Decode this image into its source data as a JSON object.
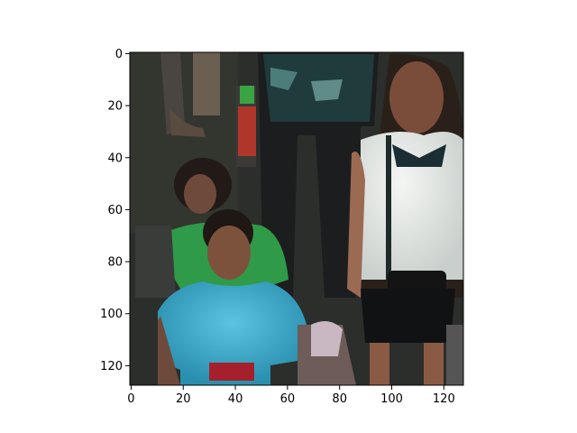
{
  "chart_data": {
    "type": "image",
    "image_size": [
      128,
      128
    ],
    "xlim": [
      -0.5,
      127.5
    ],
    "ylim": [
      127.5,
      -0.5
    ],
    "x_ticks": [
      0,
      20,
      40,
      60,
      80,
      100,
      120
    ],
    "y_ticks": [
      0,
      20,
      40,
      60,
      80,
      100,
      120
    ],
    "axis_color": "#000000"
  }
}
